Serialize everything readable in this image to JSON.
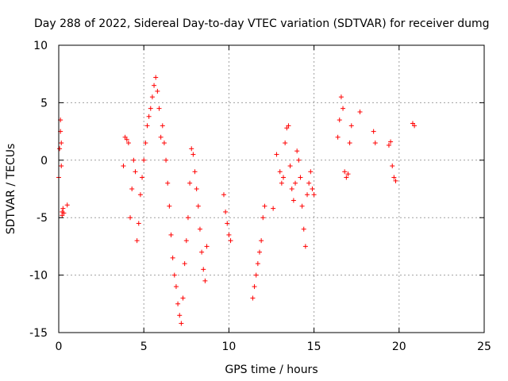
{
  "chart_data": {
    "type": "scatter",
    "title": "Day 288 of 2022, Sidereal Day-to-day VTEC variation (SDTVAR) for receiver dumg",
    "xlabel": "GPS time / hours",
    "ylabel": "SDTVAR / TECUs",
    "xlim": [
      0,
      25
    ],
    "ylim": [
      -15,
      10
    ],
    "xticks": [
      0,
      5,
      10,
      15,
      20,
      25
    ],
    "yticks": [
      -15,
      -10,
      -5,
      0,
      5,
      10
    ],
    "xtick_labels": [
      "0",
      "5",
      "10",
      "15",
      "20",
      "25"
    ],
    "ytick_labels": [
      "-15",
      "-10",
      "-5",
      "0",
      "5",
      "10"
    ],
    "grid": true,
    "marker": "+",
    "series": [
      {
        "name": "SDTVAR",
        "color": "#ff0000",
        "x": [
          0.0,
          0.05,
          0.1,
          0.15,
          0.2,
          0.25,
          0.1,
          0.15,
          0.2,
          0.3,
          0.5,
          3.8,
          3.9,
          4.0,
          4.1,
          4.2,
          4.3,
          4.4,
          4.5,
          4.6,
          4.7,
          4.8,
          4.9,
          5.0,
          5.1,
          5.2,
          5.3,
          5.4,
          5.5,
          5.6,
          5.7,
          5.8,
          5.9,
          6.0,
          6.1,
          6.2,
          6.3,
          6.4,
          6.5,
          6.6,
          6.7,
          6.8,
          6.9,
          7.0,
          7.1,
          7.2,
          7.3,
          7.4,
          7.5,
          7.6,
          7.7,
          7.8,
          7.9,
          8.0,
          8.1,
          8.2,
          8.3,
          8.4,
          8.5,
          8.6,
          8.7,
          9.7,
          9.8,
          9.9,
          10.0,
          10.1,
          11.4,
          11.5,
          11.6,
          11.7,
          11.8,
          11.9,
          12.0,
          12.1,
          12.6,
          12.8,
          13.0,
          13.1,
          13.2,
          13.3,
          13.4,
          13.5,
          13.6,
          13.7,
          13.8,
          13.9,
          14.0,
          14.1,
          14.2,
          14.3,
          14.4,
          14.5,
          14.6,
          14.7,
          14.8,
          14.9,
          15.0,
          16.4,
          16.5,
          16.6,
          16.7,
          16.8,
          16.9,
          17.0,
          17.1,
          17.2,
          17.7,
          18.5,
          18.6,
          19.4,
          19.5,
          19.6,
          19.7,
          19.8,
          20.8,
          20.9
        ],
        "y": [
          -1.5,
          1.0,
          3.5,
          -0.5,
          -4.5,
          -4.2,
          2.5,
          1.5,
          -4.8,
          -4.6,
          -3.9,
          -0.5,
          2.0,
          1.8,
          1.5,
          -5.0,
          -2.5,
          0.0,
          -1.0,
          -7.0,
          -5.5,
          -3.0,
          -1.5,
          0.0,
          1.5,
          3.0,
          3.8,
          4.5,
          5.5,
          6.5,
          7.2,
          6.0,
          4.5,
          2.0,
          3.0,
          1.5,
          0.0,
          -2.0,
          -4.0,
          -6.5,
          -8.5,
          -10.0,
          -11.0,
          -12.5,
          -13.5,
          -14.2,
          -12.0,
          -9.0,
          -7.0,
          -5.0,
          -2.0,
          1.0,
          0.5,
          -1.0,
          -2.5,
          -4.0,
          -6.0,
          -8.0,
          -9.5,
          -10.5,
          -7.5,
          -3.0,
          -4.5,
          -5.5,
          -6.5,
          -7.0,
          -12.0,
          -11.0,
          -10.0,
          -9.0,
          -8.0,
          -7.0,
          -5.0,
          -4.0,
          -4.2,
          0.5,
          -1.0,
          -2.0,
          -1.5,
          1.5,
          2.8,
          3.0,
          -0.5,
          -2.5,
          -3.5,
          -2.0,
          0.8,
          0.0,
          -1.5,
          -4.0,
          -6.0,
          -7.5,
          -3.0,
          -2.0,
          -1.0,
          -2.5,
          -3.0,
          2.0,
          3.5,
          5.5,
          4.5,
          -1.0,
          -1.5,
          -1.2,
          1.5,
          3.0,
          4.2,
          2.5,
          1.5,
          1.3,
          1.6,
          -0.5,
          -1.5,
          -1.8,
          3.2,
          3.0
        ]
      }
    ]
  }
}
